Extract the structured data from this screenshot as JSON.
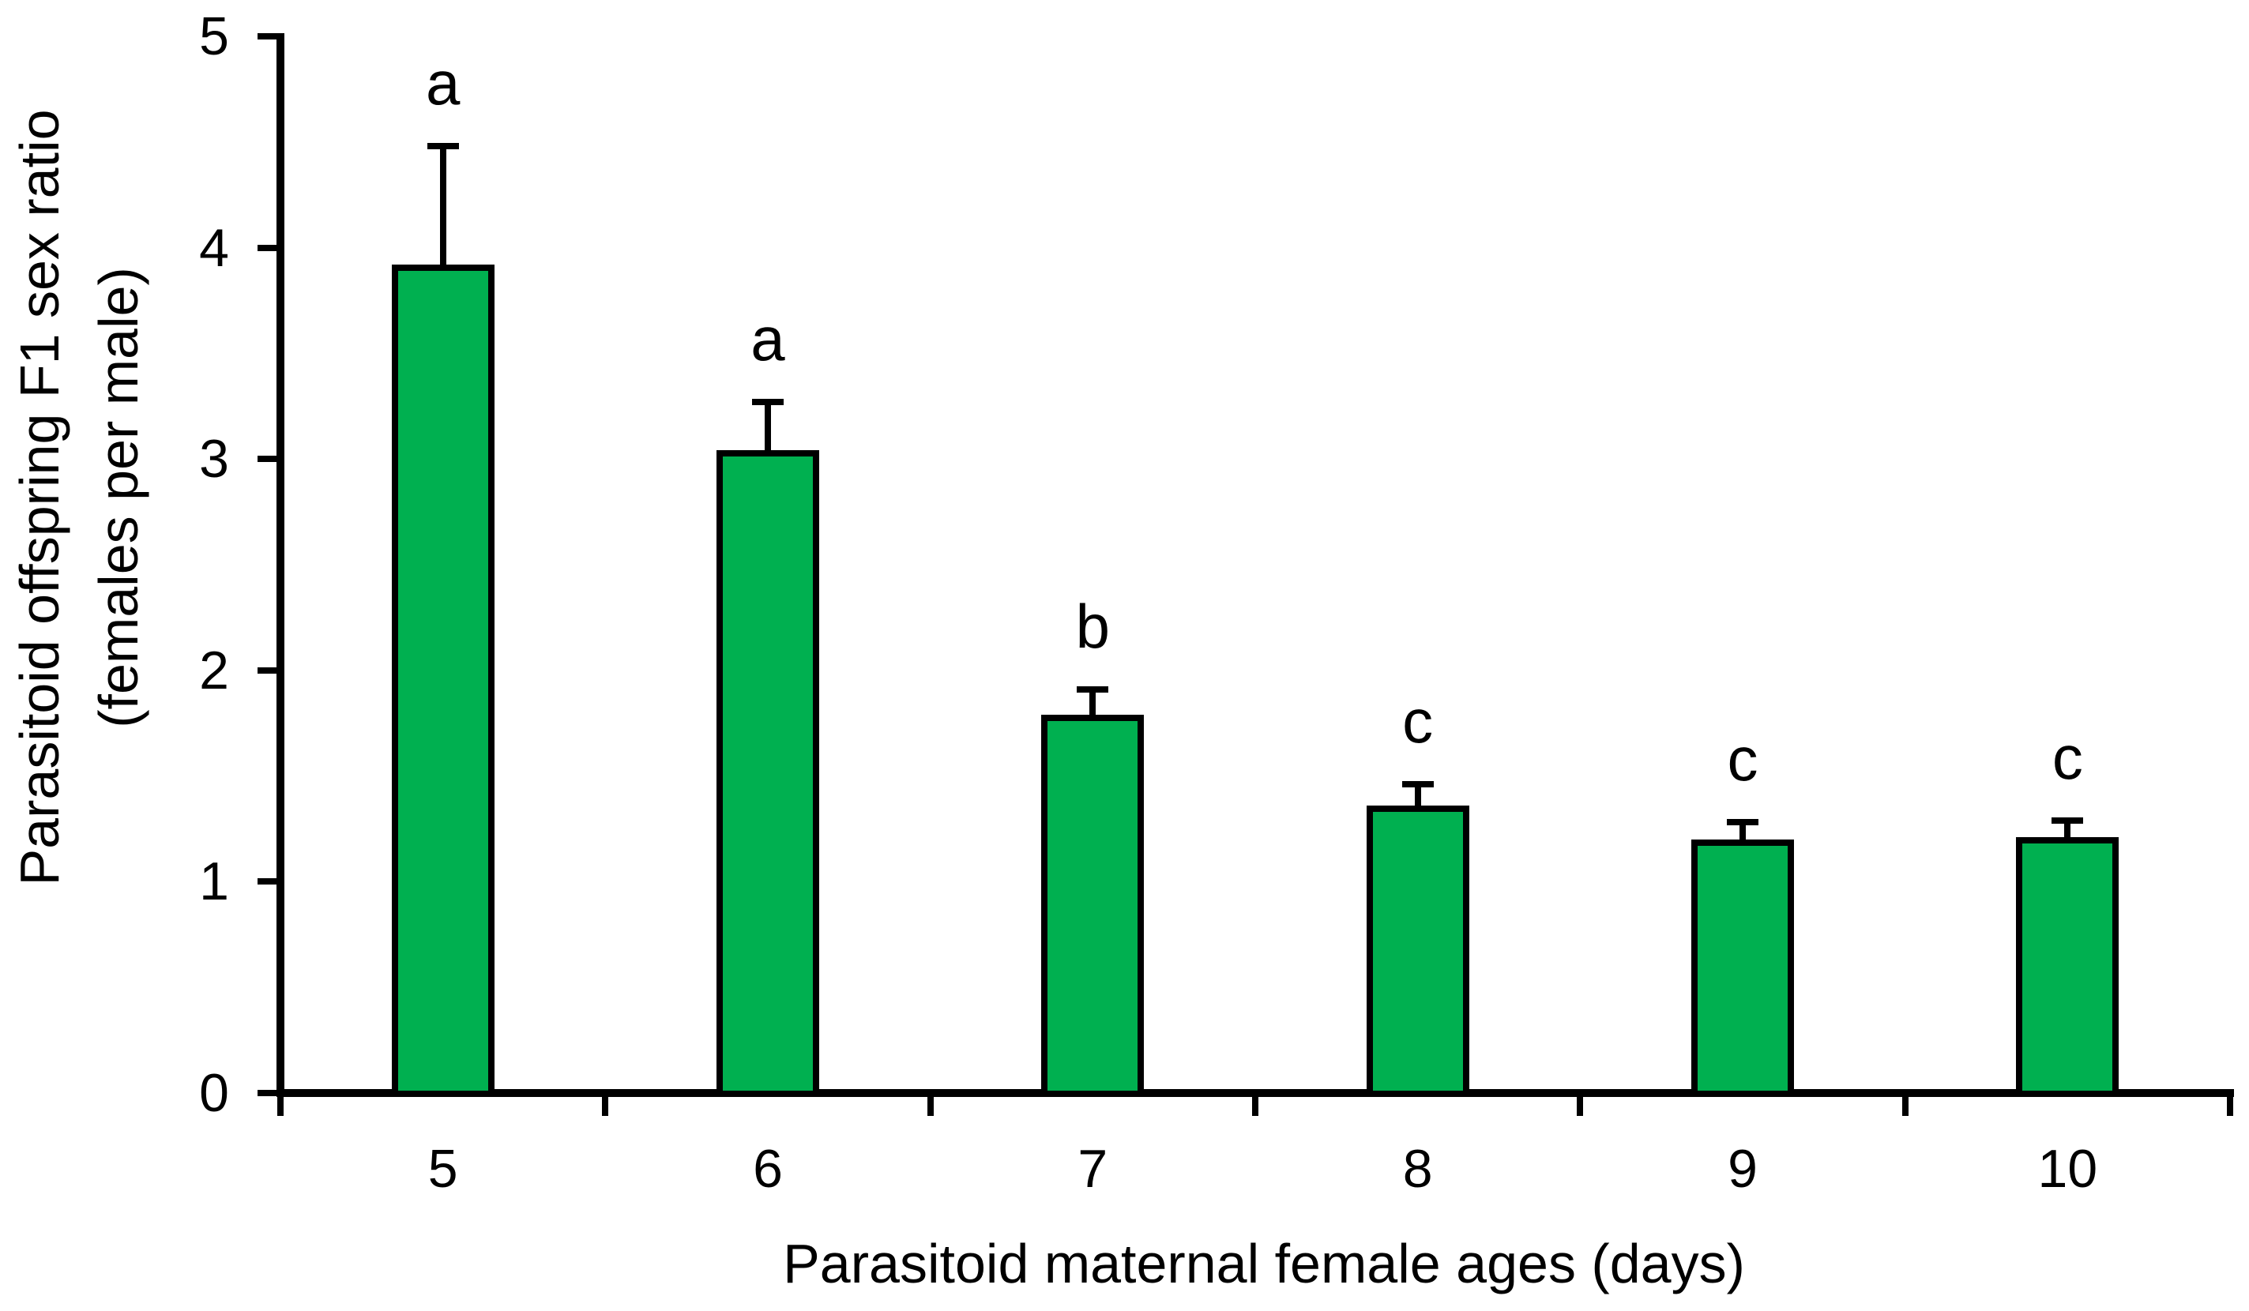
{
  "chart_data": {
    "type": "bar",
    "title": "",
    "categories": [
      "5",
      "6",
      "7",
      "8",
      "9",
      "10"
    ],
    "values": [
      3.92,
      3.04,
      1.79,
      1.36,
      1.2,
      1.21
    ],
    "error_upper": [
      0.56,
      0.23,
      0.12,
      0.1,
      0.08,
      0.08
    ],
    "sig_letters": [
      "a",
      "a",
      "b",
      "c",
      "c",
      "c"
    ],
    "xlabel": "Parasitoid maternal female ages (days)",
    "ylabel_line1": "Parasitoid offspring F1 sex ratio",
    "ylabel_line2": "(females per male)",
    "ylim": [
      0,
      5
    ],
    "yticks": [
      0,
      1,
      2,
      3,
      4,
      5
    ],
    "grid": false,
    "legend": false,
    "colors": {
      "bar_fill": "#00B050",
      "bar_outline": "#000000",
      "axis": "#000000",
      "text": "#000000",
      "background": "#FFFFFF"
    }
  }
}
